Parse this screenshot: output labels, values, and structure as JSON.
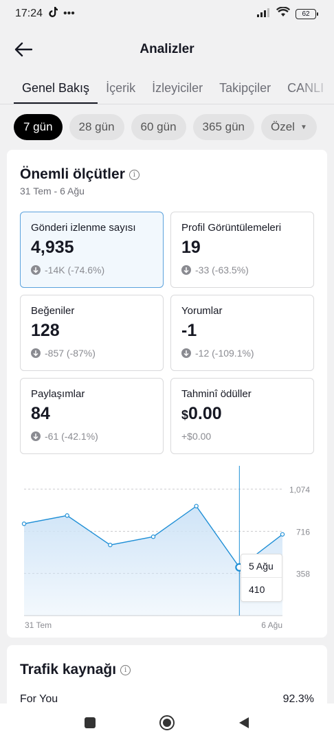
{
  "status_bar": {
    "time": "17:24",
    "extra": "•••",
    "battery": "62"
  },
  "header": {
    "title": "Analizler"
  },
  "tabs": [
    {
      "label": "Genel Bakış"
    },
    {
      "label": "İçerik"
    },
    {
      "label": "İzleyiciler"
    },
    {
      "label": "Takipçiler"
    },
    {
      "label": "CANLI"
    }
  ],
  "periods": [
    {
      "label": "7 gün"
    },
    {
      "label": "28 gün"
    },
    {
      "label": "60 gün"
    },
    {
      "label": "365 gün"
    },
    {
      "label": "Özel"
    }
  ],
  "metrics_card": {
    "title": "Önemli ölçütler",
    "info": "i",
    "date_range": "31 Tem - 6 Ağu",
    "items": [
      {
        "label": "Gönderi izlenme sayısı",
        "value": "4,935",
        "change": "-14K (-74.6%)"
      },
      {
        "label": "Profil Görüntülemeleri",
        "value": "19",
        "change": "-33 (-63.5%)"
      },
      {
        "label": "Beğeniler",
        "value": "128",
        "change": "-857 (-87%)"
      },
      {
        "label": "Yorumlar",
        "value": "-1",
        "change": "-12 (-109.1%)"
      },
      {
        "label": "Paylaşımlar",
        "value": "84",
        "change": "-61 (-42.1%)"
      },
      {
        "label": "Tahminî ödüller",
        "currency": "$",
        "value": "0.00",
        "change": "+$0.00"
      }
    ]
  },
  "chart_data": {
    "type": "area",
    "x": [
      "31 Tem",
      "1 Ağu",
      "2 Ağu",
      "3 Ağu",
      "4 Ağu",
      "5 Ağu",
      "6 Ağu"
    ],
    "values": [
      780,
      850,
      600,
      670,
      930,
      410,
      690
    ],
    "ylim": [
      0,
      1074
    ],
    "yticks": [
      "1,074",
      "716",
      "358"
    ],
    "x_labels": [
      "31 Tem",
      "6 Ağu"
    ],
    "tooltip": {
      "date": "5 Ağu",
      "value": "410"
    },
    "color": "#1f8fd6",
    "fill": "#cfe4f7"
  },
  "traffic_card": {
    "title": "Trafik kaynağı",
    "info": "i",
    "row": {
      "label": "For You",
      "value": "92.3%"
    }
  }
}
